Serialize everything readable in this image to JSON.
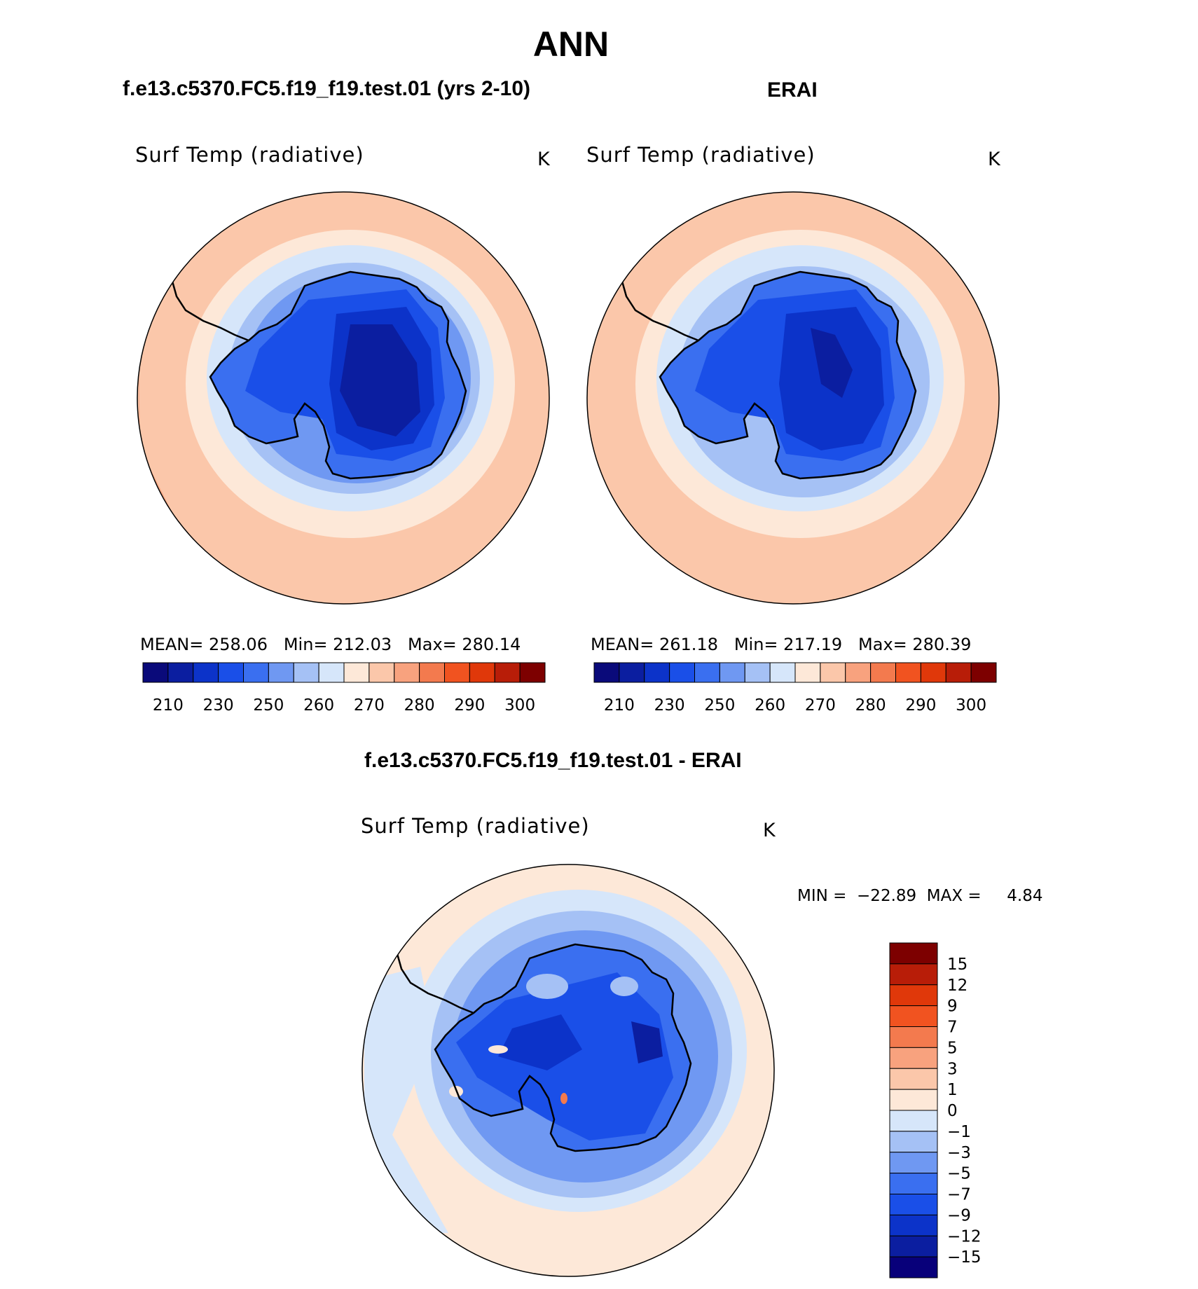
{
  "page": {
    "title": "ANN",
    "diff_title": "f.e13.c5370.FC5.f19_f19.test.01 - ERAI"
  },
  "panels": [
    {
      "header": "f.e13.c5370.FC5.f19_f19.test.01 (yrs 2-10)",
      "variable": "Surf Temp (radiative)",
      "units": "K",
      "stats": {
        "MEAN": "258.06",
        "Min": "212.03",
        "Max": "280.14"
      },
      "stats_text": "MEAN= 258.06   Min= 212.03   Max= 280.14"
    },
    {
      "header": "ERAI",
      "variable": "Surf Temp (radiative)",
      "units": "K",
      "stats": {
        "MEAN": "261.18",
        "Min": "217.19",
        "Max": "280.39"
      },
      "stats_text": "MEAN= 261.18   Min= 217.19   Max= 280.39"
    }
  ],
  "diff_panel": {
    "variable": "Surf Temp (radiative)",
    "units": "K",
    "minmax_text": "MIN =  −22.89  MAX =     4.84"
  },
  "colorbar_abs": {
    "colors": [
      "#0a0a7a",
      "#0b1ea0",
      "#0c33c9",
      "#1a4fe8",
      "#3a6ff0",
      "#6f98f2",
      "#a5c1f5",
      "#d6e6fa",
      "#fde8d8",
      "#fbc7aa",
      "#f8a27e",
      "#f37a4e",
      "#f15320",
      "#e0380a",
      "#b81d08",
      "#7d0000"
    ],
    "labels": [
      "210",
      "230",
      "250",
      "260",
      "270",
      "280",
      "290",
      "300"
    ]
  },
  "colorbar_diff": {
    "colors": [
      "#08007a",
      "#0b1ea0",
      "#0c33c9",
      "#1a4fe8",
      "#3a6ff0",
      "#6f98f2",
      "#a5c1f5",
      "#d6e6fa",
      "#fde8d8",
      "#fbc7aa",
      "#f8a27e",
      "#f37a4e",
      "#f15320",
      "#e0380a",
      "#b81d08",
      "#7d0000"
    ],
    "labels": [
      "15",
      "12",
      "9",
      "7",
      "5",
      "3",
      "1",
      "0",
      "−1",
      "−3",
      "−5",
      "−7",
      "−9",
      "−12",
      "−15"
    ]
  }
}
